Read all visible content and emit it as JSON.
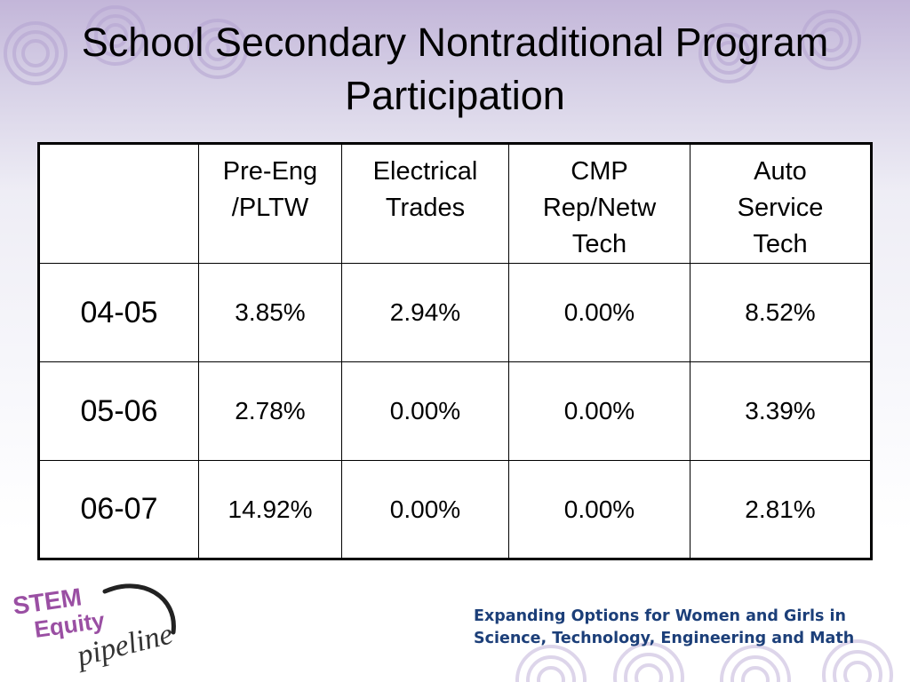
{
  "colors": {
    "swirl": "#b4a3d1",
    "logo_purple": "#9a4fa3",
    "logo_text": "#333333",
    "tagline": "#1c3f79"
  },
  "title": {
    "line1": "School Secondary Nontraditional Program",
    "line2": "Participation"
  },
  "table": {
    "headers": [
      "",
      "Pre-Eng\n/PLTW",
      "Electrical\nTrades",
      "CMP\nRep/Netw\nTech",
      "Auto\nService\nTech"
    ],
    "rows": [
      {
        "year": "04-05",
        "values": [
          "3.85%",
          "2.94%",
          "0.00%",
          "8.52%"
        ]
      },
      {
        "year": "05-06",
        "values": [
          "2.78%",
          "0.00%",
          "0.00%",
          "3.39%"
        ]
      },
      {
        "year": "06-07",
        "values": [
          "14.92%",
          "0.00%",
          "0.00%",
          "2.81%"
        ]
      }
    ]
  },
  "logo": {
    "line1": "STEM",
    "line2": "Equity",
    "line3": "pipeline"
  },
  "tagline": {
    "line1": "Expanding Options for Women and Girls in",
    "line2": "Science, Technology, Engineering and Math"
  }
}
